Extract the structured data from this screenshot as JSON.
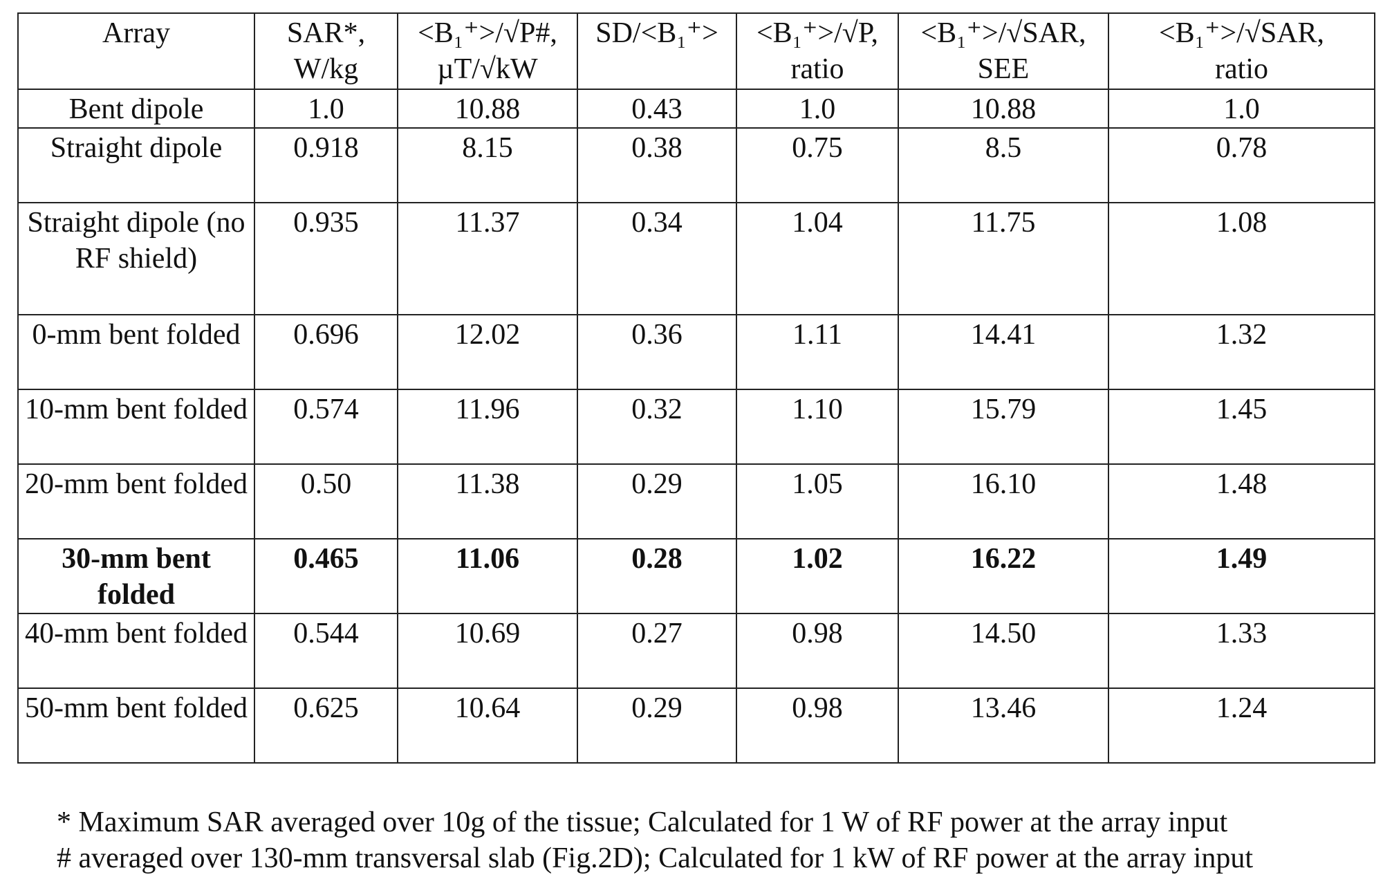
{
  "table": {
    "headers": [
      {
        "lines": [
          "Array"
        ]
      },
      {
        "lines": [
          "SAR*,",
          "W/kg"
        ]
      },
      {
        "lines": [
          "<B₁⁺>/√P#,",
          "µT/√kW"
        ]
      },
      {
        "lines": [
          "SD/<B₁⁺>"
        ]
      },
      {
        "lines": [
          "<B₁⁺>/√P,",
          "ratio"
        ]
      },
      {
        "lines": [
          "<B₁⁺>/√SAR,",
          "SEE"
        ]
      },
      {
        "lines": [
          "<B₁⁺>/√SAR,",
          "ratio"
        ]
      }
    ],
    "rows": [
      {
        "cells": [
          "Bent dipole",
          "1.0",
          "10.88",
          "0.43",
          "1.0",
          "10.88",
          "1.0"
        ],
        "bold": false
      },
      {
        "cells": [
          "Straight dipole",
          "0.918",
          "8.15",
          "0.38",
          "0.75",
          "8.5",
          "0.78"
        ],
        "bold": false
      },
      {
        "cells": [
          "Straight dipole (no RF shield)",
          "0.935",
          "11.37",
          "0.34",
          "1.04",
          "11.75",
          "1.08"
        ],
        "bold": false
      },
      {
        "cells": [
          "0-mm bent folded",
          "0.696",
          "12.02",
          "0.36",
          "1.11",
          "14.41",
          "1.32"
        ],
        "bold": false
      },
      {
        "cells": [
          "10-mm bent folded",
          "0.574",
          "11.96",
          "0.32",
          "1.10",
          "15.79",
          "1.45"
        ],
        "bold": false
      },
      {
        "cells": [
          "20-mm bent folded",
          "0.50",
          "11.38",
          "0.29",
          "1.05",
          "16.10",
          "1.48"
        ],
        "bold": false
      },
      {
        "cells": [
          "30-mm bent folded",
          "0.465",
          "11.06",
          "0.28",
          "1.02",
          "16.22",
          "1.49"
        ],
        "bold": true
      },
      {
        "cells": [
          "40-mm bent folded",
          "0.544",
          "10.69",
          "0.27",
          "0.98",
          "14.50",
          "1.33"
        ],
        "bold": false
      },
      {
        "cells": [
          "50-mm bent folded",
          "0.625",
          "10.64",
          "0.29",
          "0.98",
          "13.46",
          "1.24"
        ],
        "bold": false
      }
    ]
  },
  "footnotes": [
    "* Maximum SAR averaged over 10g of the tissue; Calculated for 1 W of RF power at the array input",
    "# averaged over 130-mm transversal slab (Fig.2D); Calculated for 1 kW of RF power at the array input"
  ]
}
